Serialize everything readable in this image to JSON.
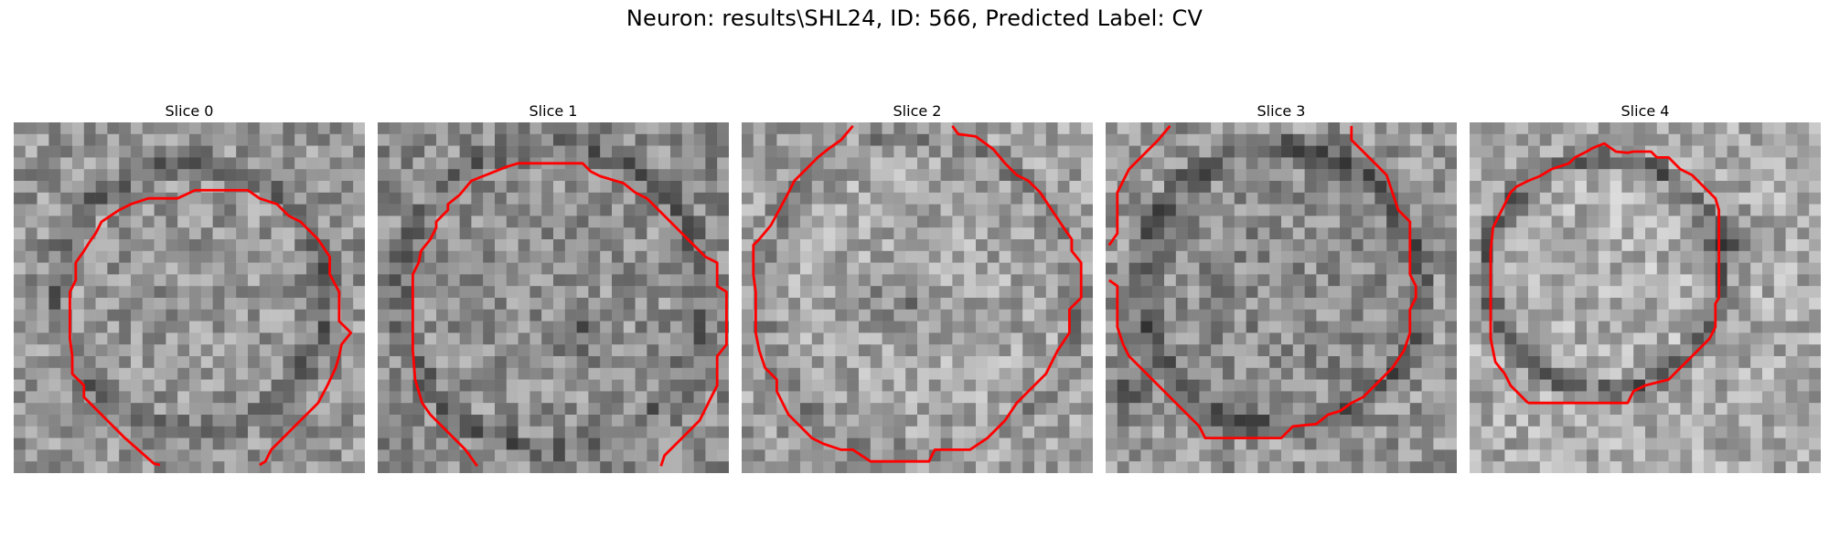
{
  "figure": {
    "title": "Neuron: results\\SHL24, ID: 566, Predicted Label: CV",
    "contour_color": "#ff0000"
  },
  "panels": [
    {
      "title": "Slice 0"
    },
    {
      "title": "Slice 1"
    },
    {
      "title": "Slice 2"
    },
    {
      "title": "Slice 3"
    },
    {
      "title": "Slice 4"
    }
  ]
}
